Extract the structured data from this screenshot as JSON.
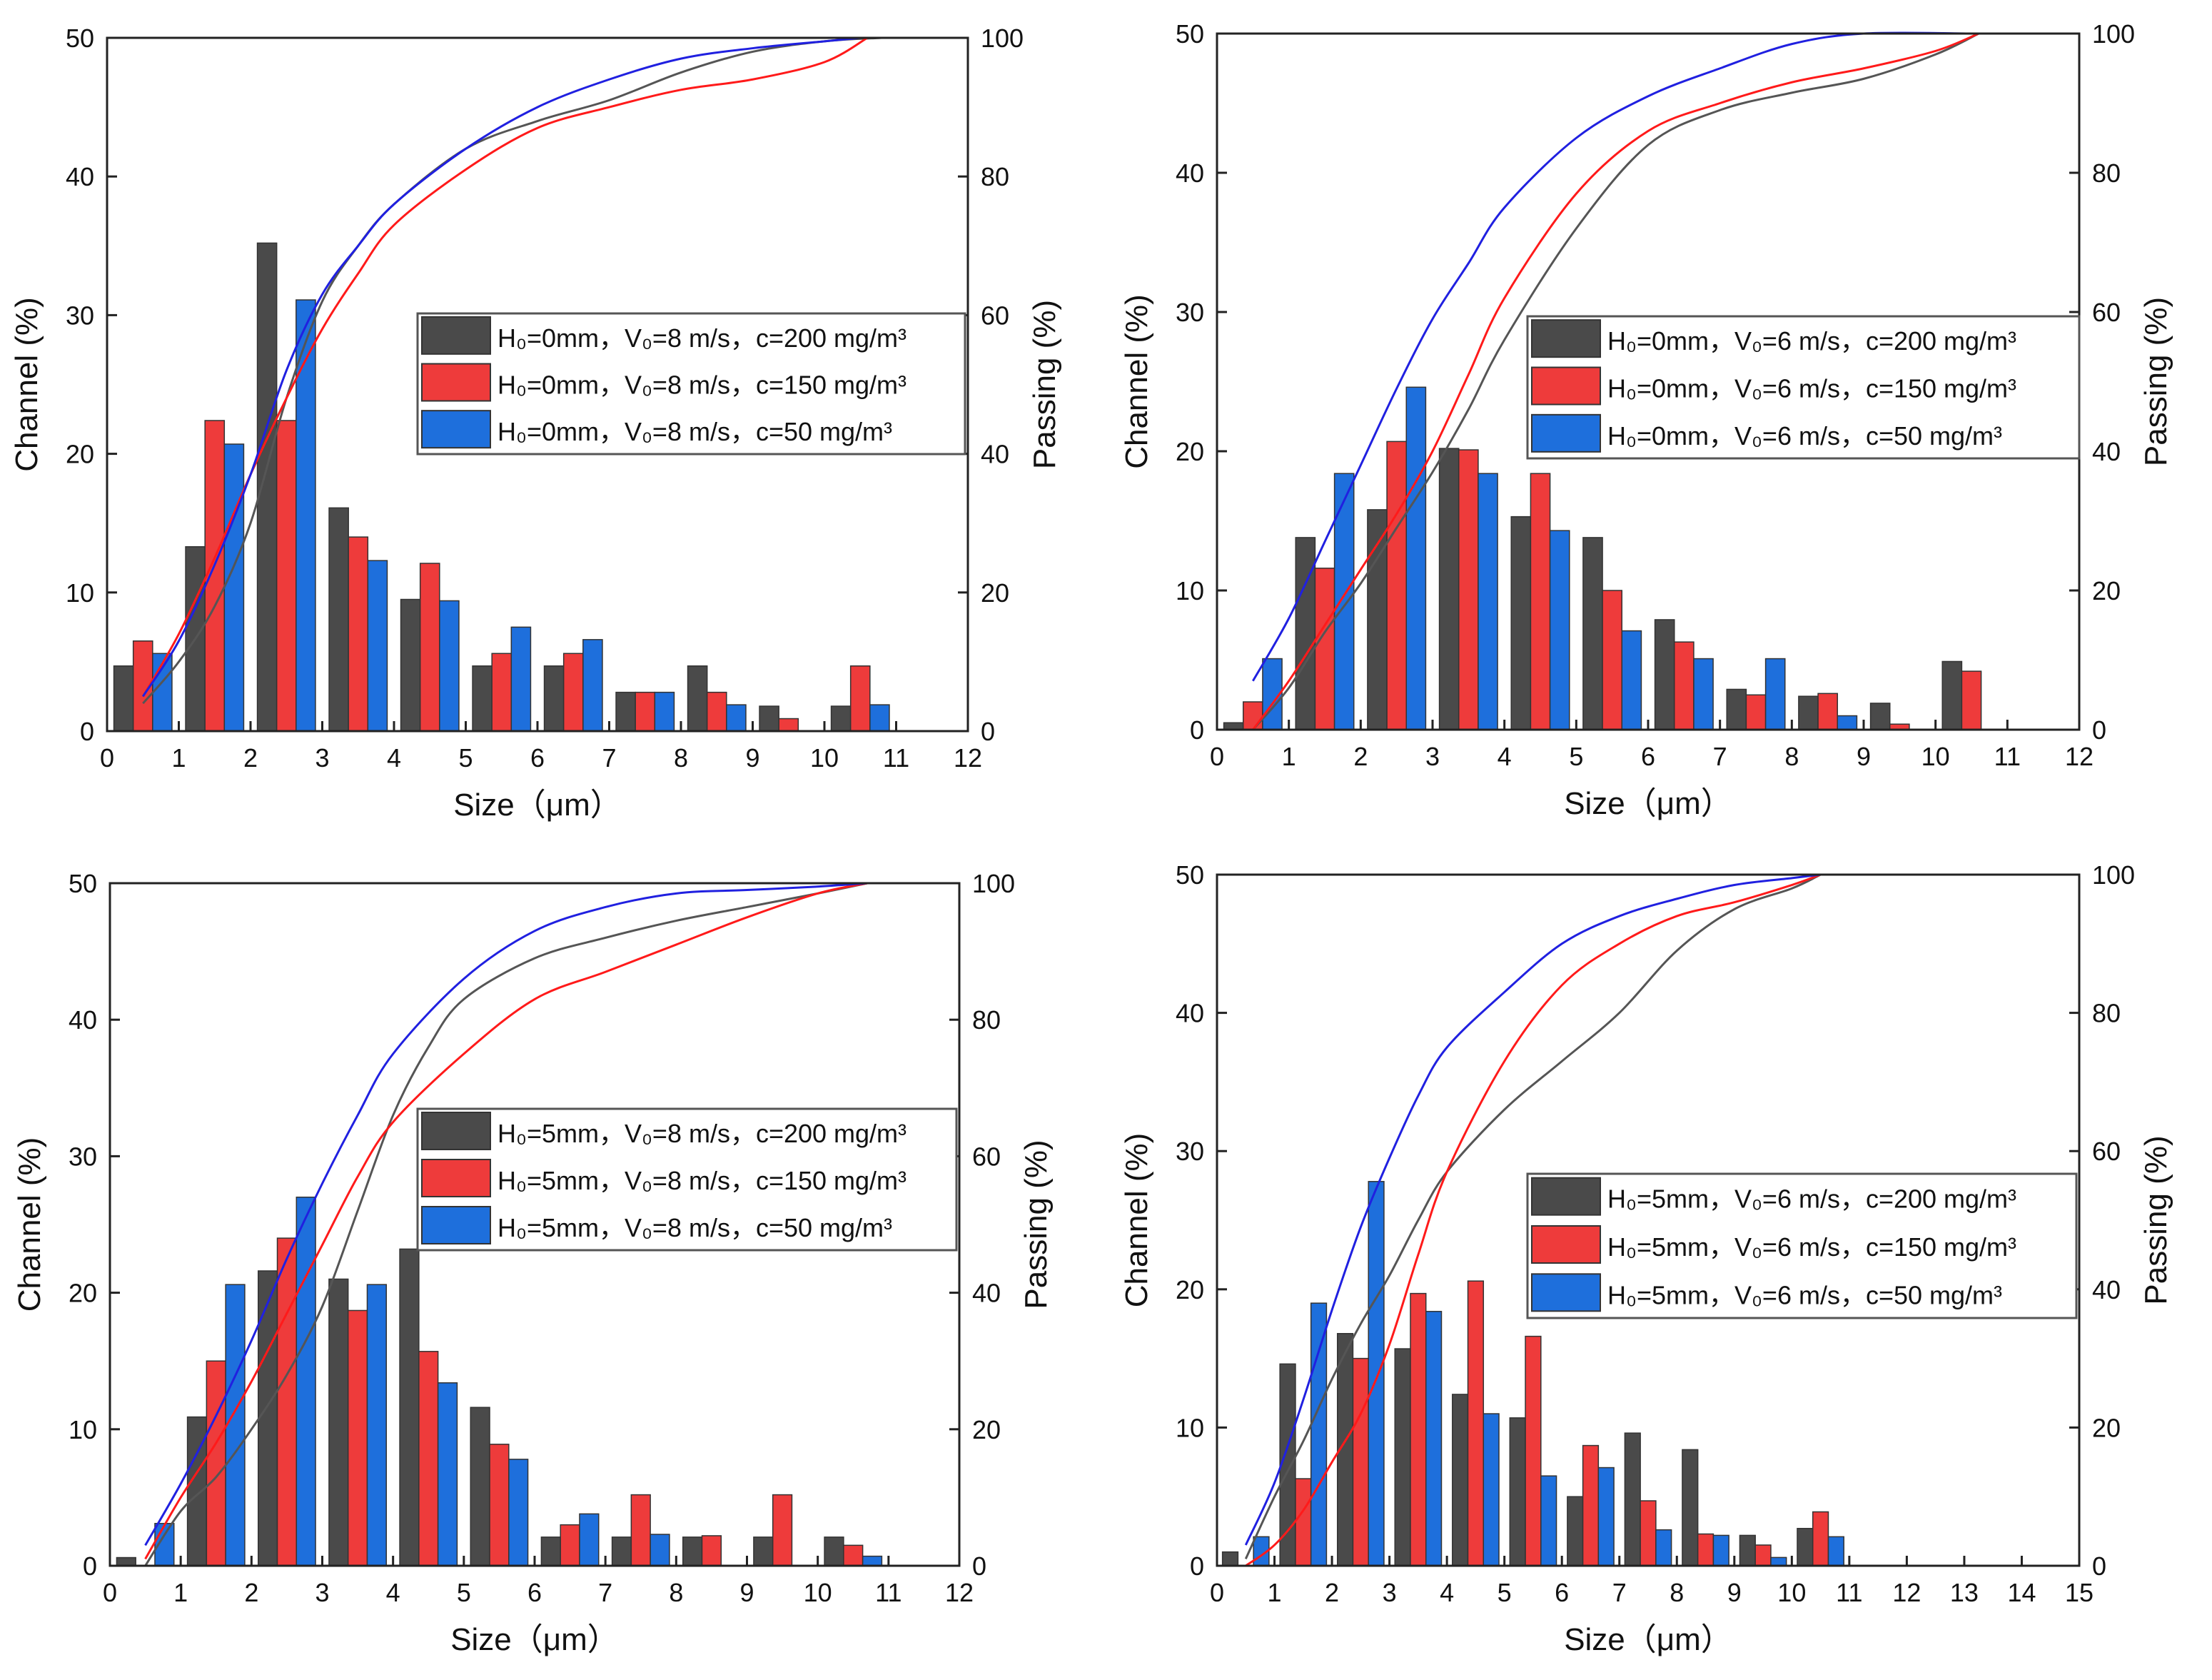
{
  "colors": {
    "gray": "#4a4a4a",
    "red": "#ee3b3b",
    "blue": "#1e6fdc",
    "gray_line": "#555555",
    "red_line": "#ff1a1a",
    "blue_line": "#2020e0"
  },
  "chart_data": [
    {
      "type": "bar",
      "xlabel": "Size（μm）",
      "ylabel": "Channel (%)",
      "y2label": "Passing (%)",
      "xlim": [
        0,
        12
      ],
      "ylim": [
        0,
        50
      ],
      "y2lim": [
        0,
        100
      ],
      "xticks": [
        "0",
        "1",
        "2",
        "3",
        "4",
        "5",
        "6",
        "7",
        "8",
        "9",
        "10",
        "11",
        "12"
      ],
      "yticks": [
        "0",
        "10",
        "20",
        "30",
        "40",
        "50"
      ],
      "y2ticks": [
        "0",
        "20",
        "40",
        "60",
        "80",
        "100"
      ],
      "legend_position": "center-right",
      "bins": [
        0,
        1,
        2,
        3,
        4,
        5,
        6,
        7,
        8,
        9,
        10
      ],
      "series": [
        {
          "name": "H₀=0mm，V₀=8 m/s，c=200 mg/m³",
          "color": "gray",
          "values": [
            4.7,
            13.3,
            35.2,
            16.1,
            9.5,
            4.7,
            4.7,
            2.8,
            4.7,
            1.8,
            1.8
          ],
          "passing": [
            [
              0.5,
              4
            ],
            [
              1,
              10
            ],
            [
              1.5,
              18
            ],
            [
              2,
              30
            ],
            [
              2.5,
              48
            ],
            [
              3,
              62
            ],
            [
              3.5,
              70
            ],
            [
              4,
              76
            ],
            [
              5,
              84
            ],
            [
              6,
              88
            ],
            [
              7,
              91
            ],
            [
              8,
              95
            ],
            [
              9,
              98
            ],
            [
              10,
              99.5
            ],
            [
              10.8,
              100
            ]
          ]
        },
        {
          "name": "H₀=0mm，V₀=8 m/s，c=150 mg/m³",
          "color": "red",
          "values": [
            6.5,
            22.4,
            22.4,
            14.0,
            12.1,
            5.6,
            5.6,
            2.8,
            2.8,
            0.9,
            4.7
          ],
          "passing": [
            [
              0.5,
              5
            ],
            [
              1,
              14
            ],
            [
              1.5,
              25
            ],
            [
              2,
              37
            ],
            [
              2.5,
              48
            ],
            [
              3,
              58
            ],
            [
              3.5,
              66
            ],
            [
              4,
              73
            ],
            [
              5,
              81
            ],
            [
              6,
              87
            ],
            [
              7,
              90
            ],
            [
              8,
              92.5
            ],
            [
              9,
              94
            ],
            [
              10,
              96.5
            ],
            [
              10.6,
              100
            ]
          ]
        },
        {
          "name": "H₀=0mm，V₀=8 m/s，c=50 mg/m³",
          "color": "blue",
          "values": [
            5.6,
            20.7,
            31.1,
            12.3,
            9.4,
            7.5,
            6.6,
            2.8,
            1.9,
            0,
            1.9
          ],
          "passing": [
            [
              0.5,
              5
            ],
            [
              1,
              13
            ],
            [
              1.5,
              24
            ],
            [
              2,
              37
            ],
            [
              2.5,
              52
            ],
            [
              3,
              63
            ],
            [
              3.5,
              70
            ],
            [
              4,
              76
            ],
            [
              5,
              84
            ],
            [
              6,
              90
            ],
            [
              7,
              94
            ],
            [
              8,
              97
            ],
            [
              9,
              98.5
            ],
            [
              10,
              99.5
            ],
            [
              10.5,
              100
            ]
          ]
        }
      ]
    },
    {
      "type": "bar",
      "xlabel": "Size（μm）",
      "ylabel": "Channel (%)",
      "y2label": "Passing (%)",
      "xlim": [
        0,
        12
      ],
      "ylim": [
        0,
        50
      ],
      "y2lim": [
        0,
        100
      ],
      "xticks": [
        "0",
        "1",
        "2",
        "3",
        "4",
        "5",
        "6",
        "7",
        "8",
        "9",
        "10",
        "11",
        "12"
      ],
      "yticks": [
        "0",
        "10",
        "20",
        "30",
        "40",
        "50"
      ],
      "y2ticks": [
        "0",
        "20",
        "40",
        "60",
        "80",
        "100"
      ],
      "legend_position": "center-right",
      "bins": [
        0,
        1,
        2,
        3,
        4,
        5,
        6,
        7,
        8,
        9,
        10
      ],
      "series": [
        {
          "name": "H₀=0mm，V₀=6 m/s，c=200 mg/m³",
          "color": "gray",
          "values": [
            0.5,
            13.8,
            15.8,
            20.2,
            15.3,
            13.8,
            7.9,
            2.9,
            2.4,
            1.9,
            4.9
          ],
          "passing": [
            [
              0.5,
              0
            ],
            [
              1,
              6
            ],
            [
              1.5,
              14
            ],
            [
              2,
              21
            ],
            [
              2.5,
              29
            ],
            [
              3,
              37
            ],
            [
              3.5,
              46
            ],
            [
              4,
              56
            ],
            [
              5,
              72
            ],
            [
              6,
              84
            ],
            [
              7,
              89
            ],
            [
              8,
              91.5
            ],
            [
              9,
              93.5
            ],
            [
              10,
              97
            ],
            [
              10.6,
              100
            ]
          ]
        },
        {
          "name": "H₀=0mm，V₀=6 m/s，c=150 mg/m³",
          "color": "red",
          "values": [
            2.0,
            11.6,
            20.7,
            20.1,
            18.4,
            10.0,
            6.3,
            2.5,
            2.6,
            0.4,
            4.2
          ],
          "passing": [
            [
              0.5,
              0
            ],
            [
              1,
              7
            ],
            [
              1.5,
              15
            ],
            [
              2,
              23
            ],
            [
              2.5,
              31
            ],
            [
              3,
              40
            ],
            [
              3.5,
              51
            ],
            [
              4,
              62
            ],
            [
              5,
              77
            ],
            [
              6,
              86
            ],
            [
              7,
              90
            ],
            [
              8,
              93
            ],
            [
              9,
              95
            ],
            [
              10,
              97.5
            ],
            [
              10.6,
              100
            ]
          ]
        },
        {
          "name": "H₀=0mm，V₀=6 m/s，c=50 mg/m³",
          "color": "blue",
          "values": [
            5.1,
            18.4,
            24.6,
            18.4,
            14.3,
            7.1,
            5.1,
            5.1,
            1.0,
            0,
            0
          ],
          "passing": [
            [
              0.5,
              7
            ],
            [
              1,
              16
            ],
            [
              1.5,
              27
            ],
            [
              2,
              38
            ],
            [
              2.5,
              49
            ],
            [
              3,
              59
            ],
            [
              3.5,
              67
            ],
            [
              4,
              75
            ],
            [
              5,
              85
            ],
            [
              6,
              91
            ],
            [
              7,
              95
            ],
            [
              8,
              98.5
            ],
            [
              9,
              100
            ],
            [
              10.5,
              100
            ]
          ]
        }
      ]
    },
    {
      "type": "bar",
      "xlabel": "Size（μm）",
      "ylabel": "Channel (%)",
      "y2label": "Passing (%)",
      "xlim": [
        0,
        12
      ],
      "ylim": [
        0,
        50
      ],
      "y2lim": [
        0,
        100
      ],
      "xticks": [
        "0",
        "1",
        "2",
        "3",
        "4",
        "5",
        "6",
        "7",
        "8",
        "9",
        "10",
        "11",
        "12"
      ],
      "yticks": [
        "0",
        "10",
        "20",
        "30",
        "40",
        "50"
      ],
      "y2ticks": [
        "0",
        "20",
        "40",
        "60",
        "80",
        "100"
      ],
      "legend_position": "center-right",
      "bins": [
        0,
        1,
        2,
        3,
        4,
        5,
        6,
        7,
        8,
        9,
        10
      ],
      "series": [
        {
          "name": "H₀=5mm，V₀=8 m/s，c=200 mg/m³",
          "color": "gray",
          "values": [
            0.6,
            10.9,
            21.6,
            21.0,
            23.2,
            11.6,
            2.1,
            2.1,
            2.1,
            2.1,
            2.1
          ],
          "passing": [
            [
              0.5,
              0
            ],
            [
              1,
              8
            ],
            [
              1.5,
              13
            ],
            [
              2,
              20
            ],
            [
              2.5,
              28
            ],
            [
              3,
              38
            ],
            [
              3.5,
              52
            ],
            [
              4,
              66
            ],
            [
              4.5,
              76
            ],
            [
              5,
              83
            ],
            [
              6,
              89
            ],
            [
              7,
              92
            ],
            [
              8,
              94.5
            ],
            [
              9,
              96.5
            ],
            [
              10,
              98.5
            ],
            [
              10.7,
              100
            ]
          ]
        },
        {
          "name": "H₀=5mm，V₀=8 m/s，c=150 mg/m³",
          "color": "red",
          "values": [
            0,
            15.0,
            24.0,
            18.7,
            15.7,
            8.9,
            3.0,
            5.2,
            2.2,
            5.2,
            1.5
          ],
          "passing": [
            [
              0.5,
              1
            ],
            [
              1,
              10
            ],
            [
              1.5,
              18
            ],
            [
              2,
              27
            ],
            [
              2.5,
              37
            ],
            [
              3,
              47
            ],
            [
              3.5,
              57
            ],
            [
              4,
              65
            ],
            [
              5,
              75
            ],
            [
              6,
              83
            ],
            [
              7,
              87
            ],
            [
              8,
              91
            ],
            [
              9,
              95
            ],
            [
              10,
              98.5
            ],
            [
              10.7,
              100
            ]
          ]
        },
        {
          "name": "H₀=5mm，V₀=8 m/s，c=50 mg/m³",
          "color": "blue",
          "values": [
            3.1,
            20.6,
            27.0,
            20.6,
            13.4,
            7.8,
            3.8,
            2.3,
            0,
            0,
            0.7
          ],
          "passing": [
            [
              0.5,
              3
            ],
            [
              1,
              12
            ],
            [
              1.5,
              22
            ],
            [
              2,
              33
            ],
            [
              2.5,
              45
            ],
            [
              3,
              56
            ],
            [
              3.5,
              66
            ],
            [
              4,
              75
            ],
            [
              5,
              86
            ],
            [
              6,
              93
            ],
            [
              7,
              96.5
            ],
            [
              8,
              98.5
            ],
            [
              9,
              99
            ],
            [
              10,
              99.5
            ],
            [
              10.7,
              100
            ]
          ]
        }
      ]
    },
    {
      "type": "bar",
      "xlabel": "Size（μm）",
      "ylabel": "Channel (%)",
      "y2label": "Passing (%)",
      "xlim": [
        0,
        15
      ],
      "ylim": [
        0,
        50
      ],
      "y2lim": [
        0,
        100
      ],
      "xticks": [
        "0",
        "1",
        "2",
        "3",
        "4",
        "5",
        "6",
        "7",
        "8",
        "9",
        "10",
        "11",
        "12",
        "13",
        "14",
        "15"
      ],
      "yticks": [
        "0",
        "10",
        "20",
        "30",
        "40",
        "50"
      ],
      "y2ticks": [
        "0",
        "20",
        "40",
        "60",
        "80",
        "100"
      ],
      "legend_position": "center-right",
      "bins": [
        0,
        1,
        2,
        3,
        4,
        5,
        6,
        7,
        8,
        9,
        10
      ],
      "series": [
        {
          "name": "H₀=5mm，V₀=6 m/s，c=200 mg/m³",
          "color": "gray",
          "values": [
            1.0,
            14.6,
            16.8,
            15.7,
            12.4,
            10.7,
            5.0,
            9.6,
            8.4,
            2.2,
            2.7
          ],
          "passing": [
            [
              0.5,
              1
            ],
            [
              1,
              10
            ],
            [
              1.5,
              18
            ],
            [
              2,
              27
            ],
            [
              2.5,
              35
            ],
            [
              3,
              42
            ],
            [
              3.5,
              50
            ],
            [
              4,
              57
            ],
            [
              5,
              66
            ],
            [
              6,
              73
            ],
            [
              7,
              80
            ],
            [
              8,
              89
            ],
            [
              9,
              95
            ],
            [
              10,
              98
            ],
            [
              10.5,
              100
            ]
          ]
        },
        {
          "name": "H₀=5mm，V₀=6 m/s，c=150 mg/m³",
          "color": "red",
          "values": [
            0,
            6.3,
            15.0,
            19.7,
            20.6,
            16.6,
            8.7,
            4.7,
            2.3,
            1.5,
            3.9
          ],
          "passing": [
            [
              0.5,
              0
            ],
            [
              1,
              3
            ],
            [
              1.5,
              8
            ],
            [
              2,
              15
            ],
            [
              2.5,
              22
            ],
            [
              3,
              32
            ],
            [
              3.5,
              45
            ],
            [
              4,
              57
            ],
            [
              5,
              73
            ],
            [
              6,
              84
            ],
            [
              7,
              90
            ],
            [
              8,
              94
            ],
            [
              9,
              96
            ],
            [
              10,
              98.5
            ],
            [
              10.5,
              100
            ]
          ]
        },
        {
          "name": "H₀=5mm，V₀=6 m/s，c=50 mg/m³",
          "color": "blue",
          "values": [
            2.1,
            19.0,
            27.8,
            18.4,
            11.0,
            6.5,
            7.1,
            2.6,
            2.2,
            0.6,
            2.1
          ],
          "passing": [
            [
              0.5,
              3
            ],
            [
              1,
              12
            ],
            [
              1.5,
              24
            ],
            [
              2,
              37
            ],
            [
              2.5,
              49
            ],
            [
              3,
              59
            ],
            [
              3.5,
              68
            ],
            [
              4,
              75
            ],
            [
              5,
              83
            ],
            [
              6,
              90
            ],
            [
              7,
              94
            ],
            [
              8,
              96.5
            ],
            [
              9,
              98.5
            ],
            [
              10,
              99.5
            ],
            [
              10.5,
              100
            ]
          ]
        }
      ]
    }
  ]
}
